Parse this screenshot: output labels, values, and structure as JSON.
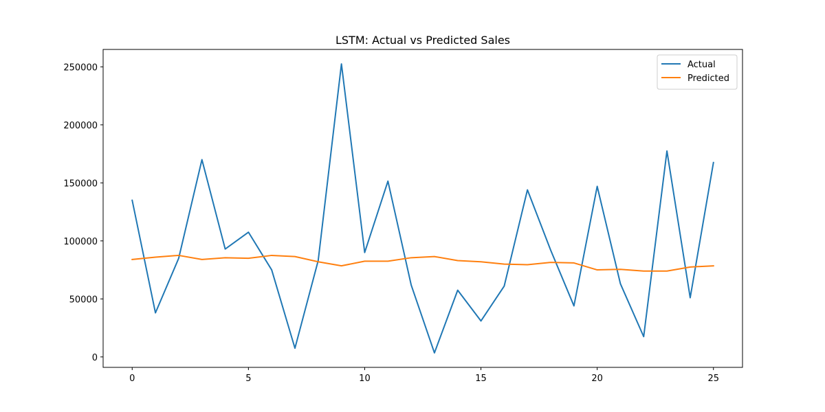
{
  "chart_data": {
    "type": "line",
    "title": "LSTM: Actual vs Predicted Sales",
    "xlabel": "",
    "ylabel": "",
    "xlim": [
      -1.25,
      26.25
    ],
    "ylim": [
      -9000,
      265000
    ],
    "xticks": [
      0,
      5,
      10,
      15,
      20,
      25
    ],
    "yticks": [
      0,
      50000,
      100000,
      150000,
      200000,
      250000
    ],
    "x": [
      0,
      1,
      2,
      3,
      4,
      5,
      6,
      7,
      8,
      9,
      10,
      11,
      12,
      13,
      14,
      15,
      16,
      17,
      18,
      19,
      20,
      21,
      22,
      23,
      24,
      25
    ],
    "series": [
      {
        "name": "Actual",
        "color": "#1f77b4",
        "values": [
          135000,
          38000,
          85000,
          170000,
          93000,
          107500,
          75000,
          7500,
          83000,
          252500,
          90000,
          151500,
          62000,
          3500,
          57500,
          31000,
          61000,
          144000,
          92000,
          44000,
          147000,
          63000,
          17500,
          177500,
          51000,
          167500
        ]
      },
      {
        "name": "Predicted",
        "color": "#ff7f0e",
        "values": [
          84000,
          86000,
          87500,
          84000,
          85500,
          85000,
          87500,
          86500,
          82000,
          78500,
          82500,
          82500,
          85500,
          86500,
          83000,
          82000,
          80000,
          79500,
          81500,
          81000,
          75000,
          75500,
          74000,
          74000,
          77500,
          78500
        ]
      }
    ],
    "legend": "top-right",
    "grid": false
  }
}
